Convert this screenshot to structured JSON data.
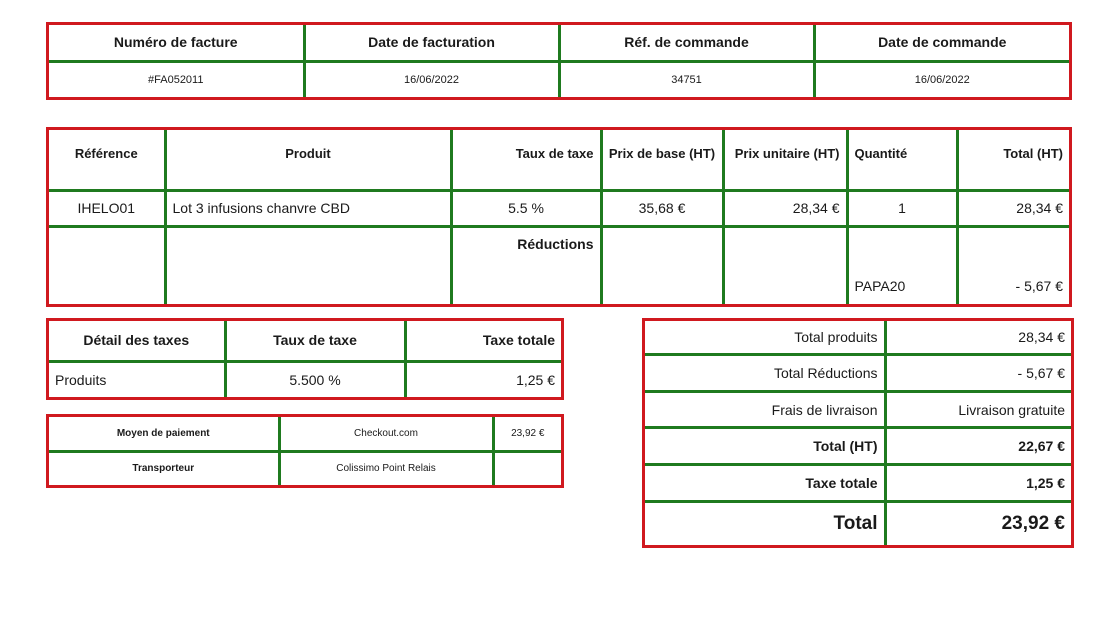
{
  "invoice_header": {
    "invoice_number_label": "Numéro de facture",
    "invoice_date_label": "Date de facturation",
    "order_ref_label": "Réf. de commande",
    "order_date_label": "Date de commande",
    "invoice_number": "#FA052011",
    "invoice_date": "16/06/2022",
    "order_ref": "34751",
    "order_date": "16/06/2022"
  },
  "products_table": {
    "headers": {
      "reference": "Référence",
      "product": "Produit",
      "tax_rate": "Taux de taxe",
      "base_price": "Prix de base (HT)",
      "unit_price": "Prix unitaire (HT)",
      "quantity": "Quantité",
      "total": "Total (HT)"
    },
    "rows": [
      {
        "reference": "IHELO01",
        "product": "Lot 3 infusions chanvre CBD",
        "tax_rate": "5.5 %",
        "base_price": "35,68 €",
        "unit_price": "28,34 €",
        "quantity": "1",
        "total": "28,34 €"
      }
    ],
    "reductions_label": "Réductions",
    "discount_code": "PAPA20",
    "discount_amount": "- 5,67 €"
  },
  "tax_details": {
    "headers": {
      "detail": "Détail des taxes",
      "rate": "Taux de taxe",
      "total": "Taxe totale"
    },
    "row": {
      "detail": "Produits",
      "rate": "5.500 %",
      "total": "1,25 €"
    }
  },
  "payment": {
    "method_label": "Moyen de paiement",
    "method_value": "Checkout.com",
    "method_amount": "23,92 €",
    "carrier_label": "Transporteur",
    "carrier_value": "Colissimo Point Relais"
  },
  "totals": {
    "products_label": "Total produits",
    "products_value": "28,34 €",
    "reductions_label": "Total Réductions",
    "reductions_value": "- 5,67 €",
    "shipping_label": "Frais de livraison",
    "shipping_value": "Livraison gratuite",
    "total_ht_label": "Total (HT)",
    "total_ht_value": "22,67 €",
    "tax_label": "Taxe totale",
    "tax_value": "1,25 €",
    "grand_label": "Total",
    "grand_value": "23,92 €"
  },
  "colors": {
    "box_border": "#d0191f",
    "cell_border": "#1f7a1f"
  }
}
